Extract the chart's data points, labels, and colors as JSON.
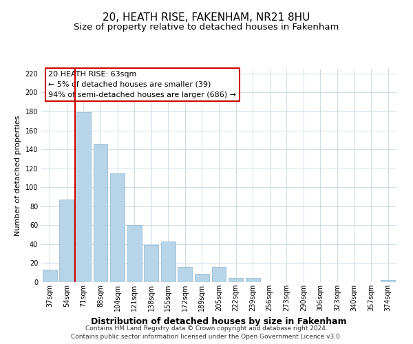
{
  "title": "20, HEATH RISE, FAKENHAM, NR21 8HU",
  "subtitle": "Size of property relative to detached houses in Fakenham",
  "xlabel": "Distribution of detached houses by size in Fakenham",
  "ylabel": "Number of detached properties",
  "categories": [
    "37sqm",
    "54sqm",
    "71sqm",
    "88sqm",
    "104sqm",
    "121sqm",
    "138sqm",
    "155sqm",
    "172sqm",
    "189sqm",
    "205sqm",
    "222sqm",
    "239sqm",
    "256sqm",
    "273sqm",
    "290sqm",
    "306sqm",
    "323sqm",
    "340sqm",
    "357sqm",
    "374sqm"
  ],
  "values": [
    13,
    87,
    179,
    146,
    115,
    60,
    39,
    43,
    16,
    9,
    16,
    4,
    4,
    0,
    0,
    0,
    0,
    0,
    0,
    0,
    2
  ],
  "bar_color": "#b8d4e8",
  "highlight_color": "#cc0000",
  "annotation_title": "20 HEATH RISE: 63sqm",
  "annotation_line1": "← 5% of detached houses are smaller (39)",
  "annotation_line2": "94% of semi-detached houses are larger (686) →",
  "ylim": [
    0,
    225
  ],
  "yticks": [
    0,
    20,
    40,
    60,
    80,
    100,
    120,
    140,
    160,
    180,
    200,
    220
  ],
  "footer_line1": "Contains HM Land Registry data © Crown copyright and database right 2024.",
  "footer_line2": "Contains public sector information licensed under the Open Government Licence v3.0.",
  "background_color": "#ffffff",
  "grid_color": "#ccdde8",
  "annotation_box_facecolor": "#ffffff",
  "annotation_box_edgecolor": "#cc0000",
  "title_fontsize": 11,
  "subtitle_fontsize": 9.5,
  "xlabel_fontsize": 9,
  "ylabel_fontsize": 8,
  "tick_fontsize": 7,
  "annotation_fontsize": 8,
  "footer_fontsize": 6.5,
  "red_line_x": 1.5
}
